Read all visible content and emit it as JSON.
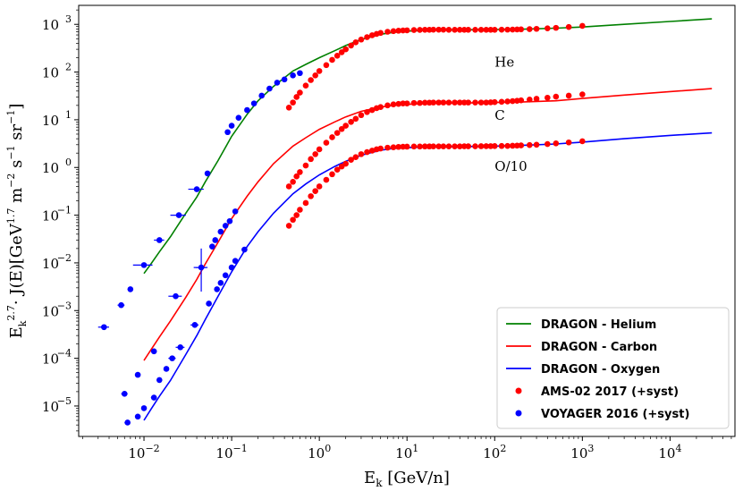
{
  "chart_data": {
    "type": "scatter",
    "title": "",
    "xlabel": "E_k [GeV/n]",
    "ylabel": "E_k^2.7 · J(E)[GeV^1.7 m^-2 s^-1 sr^-1]",
    "xscale": "log",
    "yscale": "log",
    "xlim": [
      0.0018,
      55000
    ],
    "ylim": [
      2.3e-06,
      2500
    ],
    "x_ticks": [
      {
        "value": 0.01,
        "base": "10",
        "exp": "−2"
      },
      {
        "value": 0.1,
        "base": "10",
        "exp": "−1"
      },
      {
        "value": 1,
        "base": "10",
        "exp": "0"
      },
      {
        "value": 10,
        "base": "10",
        "exp": "1"
      },
      {
        "value": 100,
        "base": "10",
        "exp": "2"
      },
      {
        "value": 1000,
        "base": "10",
        "exp": "3"
      },
      {
        "value": 10000,
        "base": "10",
        "exp": "4"
      }
    ],
    "y_ticks": [
      {
        "value": 1e-05,
        "base": "10",
        "exp": "−5"
      },
      {
        "value": 0.0001,
        "base": "10",
        "exp": "−4"
      },
      {
        "value": 0.001,
        "base": "10",
        "exp": "−3"
      },
      {
        "value": 0.01,
        "base": "10",
        "exp": "−2"
      },
      {
        "value": 0.1,
        "base": "10",
        "exp": "−1"
      },
      {
        "value": 1,
        "base": "10",
        "exp": "0"
      },
      {
        "value": 10,
        "base": "10",
        "exp": "1"
      },
      {
        "value": 100,
        "base": "10",
        "exp": "2"
      },
      {
        "value": 1000,
        "base": "10",
        "exp": "3"
      }
    ],
    "legend_position": "bottom-right",
    "annotations": [
      {
        "text": "He",
        "x": 100,
        "y": 130
      },
      {
        "text": "C",
        "x": 100,
        "y": 10
      },
      {
        "text": "O/10",
        "x": 100,
        "y": 0.85
      }
    ],
    "series": [
      {
        "name": "DRAGON - Helium",
        "kind": "line",
        "color": "#008000",
        "x": [
          0.01,
          0.012,
          0.015,
          0.02,
          0.03,
          0.04,
          0.05,
          0.07,
          0.1,
          0.15,
          0.2,
          0.3,
          0.5,
          0.7,
          1,
          1.5,
          2,
          3,
          5,
          7,
          10,
          20,
          50,
          100,
          200,
          500,
          1000,
          3000,
          10000,
          30000
        ],
        "y": [
          0.006,
          0.0095,
          0.017,
          0.035,
          0.11,
          0.24,
          0.5,
          1.4,
          4.5,
          13,
          25,
          50,
          105,
          145,
          200,
          280,
          360,
          480,
          620,
          680,
          720,
          760,
          770,
          780,
          790,
          830,
          880,
          1000,
          1150,
          1300
        ]
      },
      {
        "name": "DRAGON - Carbon",
        "kind": "line",
        "color": "#ff0000",
        "x": [
          0.01,
          0.012,
          0.015,
          0.02,
          0.03,
          0.04,
          0.05,
          0.07,
          0.1,
          0.15,
          0.2,
          0.3,
          0.5,
          0.7,
          1,
          1.5,
          2,
          3,
          5,
          7,
          10,
          20,
          50,
          100,
          200,
          500,
          1000,
          3000,
          10000,
          30000
        ],
        "y": [
          9e-05,
          0.00015,
          0.00028,
          0.0006,
          0.0019,
          0.0045,
          0.0095,
          0.027,
          0.085,
          0.25,
          0.5,
          1.2,
          2.8,
          4.2,
          6.3,
          9,
          11.5,
          15,
          18.5,
          20,
          21,
          22,
          22.5,
          23,
          23.5,
          25,
          28,
          33,
          39,
          45
        ]
      },
      {
        "name": "DRAGON - Oxygen",
        "kind": "line",
        "color": "#0000ff",
        "x": [
          0.01,
          0.012,
          0.015,
          0.02,
          0.03,
          0.04,
          0.05,
          0.07,
          0.1,
          0.15,
          0.2,
          0.3,
          0.5,
          0.7,
          1,
          1.5,
          2,
          3,
          5,
          7,
          10,
          20,
          50,
          100,
          200,
          500,
          1000,
          3000,
          10000,
          30000
        ],
        "y": [
          5e-06,
          8.5e-06,
          1.6e-05,
          3.4e-05,
          0.00012,
          0.0003,
          0.00065,
          0.002,
          0.0065,
          0.022,
          0.045,
          0.11,
          0.28,
          0.45,
          0.7,
          1.05,
          1.35,
          1.8,
          2.3,
          2.5,
          2.6,
          2.7,
          2.75,
          2.8,
          2.9,
          3.1,
          3.4,
          4,
          4.7,
          5.3
        ]
      },
      {
        "name": "AMS-02 2017 (+syst)",
        "kind": "points",
        "color": "#ff0000",
        "groups": [
          {
            "label": "He",
            "x": [
              0.45,
              0.5,
              0.55,
              0.6,
              0.7,
              0.8,
              0.9,
              1,
              1.2,
              1.4,
              1.6,
              1.8,
              2,
              2.3,
              2.6,
              3,
              3.5,
              4,
              4.5,
              5,
              6,
              7,
              8,
              9,
              10,
              12,
              14,
              16,
              18,
              20,
              23,
              26,
              30,
              35,
              40,
              45,
              50,
              60,
              70,
              80,
              90,
              100,
              120,
              140,
              160,
              180,
              200,
              250,
              300,
              400,
              500,
              700,
              1000
            ],
            "y": [
              18,
              23,
              30,
              37,
              52,
              68,
              85,
              105,
              140,
              180,
              220,
              260,
              300,
              360,
              420,
              480,
              540,
              590,
              630,
              660,
              700,
              720,
              735,
              745,
              750,
              760,
              765,
              770,
              770,
              772,
              772,
              772,
              770,
              770,
              770,
              768,
              768,
              768,
              770,
              770,
              770,
              770,
              772,
              775,
              778,
              782,
              786,
              795,
              805,
              825,
              845,
              880,
              930
            ]
          },
          {
            "label": "C",
            "x": [
              0.45,
              0.5,
              0.55,
              0.6,
              0.7,
              0.8,
              0.9,
              1,
              1.2,
              1.4,
              1.6,
              1.8,
              2,
              2.3,
              2.6,
              3,
              3.5,
              4,
              4.5,
              5,
              6,
              7,
              8,
              9,
              10,
              12,
              14,
              16,
              18,
              20,
              23,
              26,
              30,
              35,
              40,
              45,
              50,
              60,
              70,
              80,
              90,
              100,
              120,
              140,
              160,
              180,
              200,
              250,
              300,
              400,
              500,
              700,
              1000
            ],
            "y": [
              0.4,
              0.5,
              0.65,
              0.8,
              1.1,
              1.5,
              1.9,
              2.4,
              3.3,
              4.3,
              5.3,
              6.4,
              7.5,
              9,
              10.5,
              12.5,
              14.5,
              16,
              17.5,
              18.5,
              20,
              21,
              21.5,
              22,
              22,
              22.5,
              22.5,
              22.8,
              22.8,
              23,
              23,
              23,
              23,
              23,
              23,
              23,
              23,
              23,
              23,
              23,
              23.2,
              23.4,
              23.8,
              24.2,
              24.6,
              25,
              25.5,
              26.5,
              27.5,
              29,
              30.5,
              32,
              34
            ]
          },
          {
            "label": "O/10",
            "x": [
              0.45,
              0.5,
              0.55,
              0.6,
              0.7,
              0.8,
              0.9,
              1,
              1.2,
              1.4,
              1.6,
              1.8,
              2,
              2.3,
              2.6,
              3,
              3.5,
              4,
              4.5,
              5,
              6,
              7,
              8,
              9,
              10,
              12,
              14,
              16,
              18,
              20,
              23,
              26,
              30,
              35,
              40,
              45,
              50,
              60,
              70,
              80,
              90,
              100,
              120,
              140,
              160,
              180,
              200,
              250,
              300,
              400,
              500,
              700,
              1000
            ],
            "y": [
              0.06,
              0.08,
              0.1,
              0.13,
              0.18,
              0.25,
              0.32,
              0.4,
              0.55,
              0.72,
              0.9,
              1.05,
              1.2,
              1.45,
              1.65,
              1.9,
              2.1,
              2.25,
              2.4,
              2.5,
              2.6,
              2.65,
              2.7,
              2.72,
              2.73,
              2.75,
              2.75,
              2.76,
              2.76,
              2.77,
              2.77,
              2.77,
              2.77,
              2.77,
              2.77,
              2.78,
              2.78,
              2.78,
              2.79,
              2.8,
              2.8,
              2.81,
              2.82,
              2.83,
              2.85,
              2.87,
              2.9,
              2.95,
              3,
              3.1,
              3.2,
              3.35,
              3.55
            ]
          }
        ]
      },
      {
        "name": "VOYAGER 2016 (+syst)",
        "kind": "points",
        "color": "#0000ff",
        "groups": [
          {
            "label": "He",
            "x": [
              0.0035,
              0.0055,
              0.007,
              0.01,
              0.015,
              0.025,
              0.04,
              0.053,
              0.09,
              0.1,
              0.12,
              0.15,
              0.18,
              0.22,
              0.27,
              0.33,
              0.4,
              0.5,
              0.6
            ],
            "y": [
              0.00045,
              0.0013,
              0.0028,
              0.009,
              0.03,
              0.1,
              0.35,
              0.75,
              5.5,
              7.5,
              11,
              16,
              22,
              32,
              45,
              60,
              70,
              85,
              95
            ],
            "xerr": [
              0.0005,
              0.0005,
              0.0005,
              0.0025,
              0.002,
              0.005,
              0.008,
              0.003,
              0.005,
              0.005,
              0.005,
              0.005,
              0.005,
              0.01,
              0.01,
              0.01,
              0.02,
              0.02,
              0.03
            ]
          },
          {
            "label": "C",
            "x": [
              0.006,
              0.0085,
              0.013,
              0.023,
              0.045,
              0.06,
              0.065,
              0.075,
              0.085,
              0.095,
              0.11
            ],
            "y": [
              1.8e-05,
              4.5e-05,
              0.00014,
              0.002,
              0.008,
              0.022,
              0.03,
              0.045,
              0.06,
              0.075,
              0.12
            ],
            "xerr": [
              0.0005,
              0.0005,
              0.001,
              0.004,
              0.006,
              0.003,
              0.003,
              0.004,
              0.004,
              0.005,
              0.005
            ]
          },
          {
            "label": "O/10",
            "x": [
              0.0065,
              0.0085,
              0.01,
              0.013,
              0.015,
              0.018,
              0.021,
              0.026,
              0.038,
              0.055,
              0.068,
              0.075,
              0.085,
              0.1,
              0.11,
              0.14
            ],
            "y": [
              4.5e-06,
              6e-06,
              9e-06,
              1.5e-05,
              3.5e-05,
              6e-05,
              0.0001,
              0.00017,
              0.0005,
              0.0014,
              0.0028,
              0.0038,
              0.0055,
              0.008,
              0.011,
              0.019
            ],
            "xerr": [
              0.0005,
              0.0005,
              0.0005,
              0.001,
              0.001,
              0.001,
              0.002,
              0.003,
              0.004,
              0.004,
              0.003,
              0.003,
              0.004,
              0.005,
              0.005,
              0.01
            ]
          }
        ]
      }
    ],
    "special_errorbar": {
      "x": 0.045,
      "y": 0.008,
      "ylo": 0.0025,
      "yhi": 0.02
    }
  },
  "axes": {
    "xlabel_main": "E",
    "xlabel_sub": "k",
    "xlabel_rest": " [GeV/n]",
    "ylabel_parts": [
      "E",
      "k",
      "2.7",
      "· J(E)[GeV",
      "1.7",
      " m",
      "−2",
      " s",
      "−1",
      " sr",
      "−1",
      "]"
    ]
  },
  "legend": {
    "items": [
      {
        "label": "DRAGON - Helium",
        "kind": "line",
        "color": "#008000"
      },
      {
        "label": "DRAGON - Carbon",
        "kind": "line",
        "color": "#ff0000"
      },
      {
        "label": "DRAGON - Oxygen",
        "kind": "line",
        "color": "#0000ff"
      },
      {
        "label": "AMS-02 2017 (+syst)",
        "kind": "point",
        "color": "#ff0000"
      },
      {
        "label": "VOYAGER 2016 (+syst)",
        "kind": "point",
        "color": "#0000ff"
      }
    ]
  }
}
